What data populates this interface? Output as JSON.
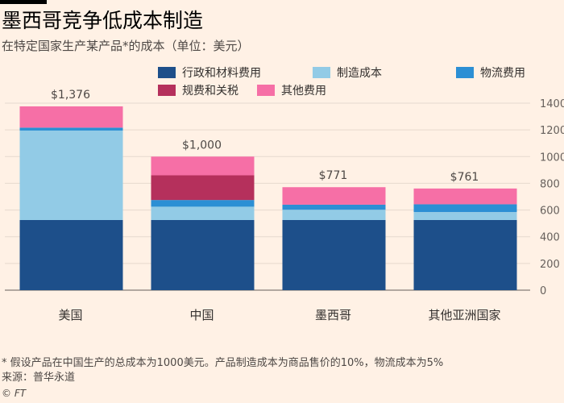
{
  "title": "墨西哥竞争低成本制造",
  "subtitle": "在特定国家生产某产品*的成本（单位：美元）",
  "footnote": "* 假设产品在中国生产的总成本为1000美元。产品制造成本为商品售价的10%，物流成本为5%",
  "source": "来源：普华永道",
  "copyright": "© FT",
  "chart_data": {
    "type": "bar",
    "stacked": true,
    "categories": [
      "美国",
      "中国",
      "墨西哥",
      "其他亚洲国家"
    ],
    "totals": [
      "$1,376",
      "$1,000",
      "$771",
      "$761"
    ],
    "ylim": [
      0,
      1400
    ],
    "yticks": [
      0,
      200,
      400,
      600,
      800,
      1000,
      1200,
      1400
    ],
    "grid": true,
    "series": [
      {
        "name": "行政和材料费用",
        "color": "#1d4f8a",
        "values": [
          525,
          525,
          525,
          525
        ]
      },
      {
        "name": "制造成本",
        "color": "#92cbe6",
        "values": [
          670,
          100,
          77,
          60
        ]
      },
      {
        "name": "物流费用",
        "color": "#2c8fd4",
        "values": [
          22,
          50,
          38,
          58
        ]
      },
      {
        "name": "规费和关税",
        "color": "#b5305c",
        "values": [
          0,
          185,
          0,
          0
        ]
      },
      {
        "name": "其他费用",
        "color": "#f66fa6",
        "values": [
          159,
          140,
          131,
          118
        ]
      }
    ]
  }
}
